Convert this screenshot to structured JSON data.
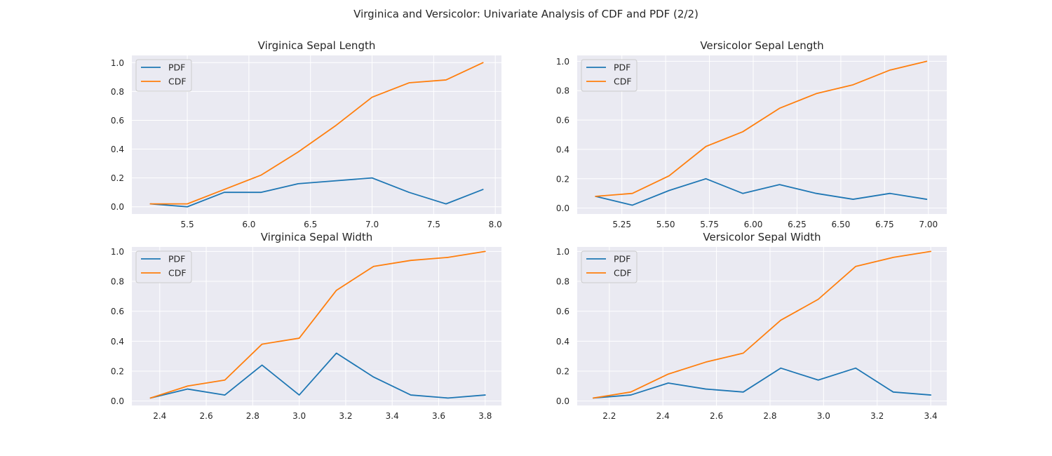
{
  "figure": {
    "title": "Virginica and Versicolor: Univariate Analysis of CDF and PDF (2/2)"
  },
  "colors": {
    "pdf": "#1f77b4",
    "cdf": "#ff7f0e",
    "plot_background": "#eaeaf2",
    "grid": "#ffffff"
  },
  "chart_data": [
    {
      "type": "line",
      "title": "Virginica Sepal Length",
      "xlabel": "",
      "ylabel": "",
      "xlim": [
        5.05,
        8.05
      ],
      "ylim": [
        -0.05,
        1.05
      ],
      "xticks": [
        5.5,
        6.0,
        6.5,
        7.0,
        7.5,
        8.0
      ],
      "xtick_labels": [
        "5.5",
        "6.0",
        "6.5",
        "7.0",
        "7.5",
        "8.0"
      ],
      "yticks": [
        0.0,
        0.2,
        0.4,
        0.6,
        0.8,
        1.0
      ],
      "ytick_labels": [
        "0.0",
        "0.2",
        "0.4",
        "0.6",
        "0.8",
        "1.0"
      ],
      "grid": true,
      "legend": "upper-left",
      "x": [
        5.2,
        5.5,
        5.8,
        6.1,
        6.4,
        6.7,
        7.0,
        7.3,
        7.6,
        7.9
      ],
      "series": [
        {
          "name": "PDF",
          "color_key": "pdf",
          "values": [
            0.02,
            0.0,
            0.1,
            0.1,
            0.16,
            0.18,
            0.2,
            0.1,
            0.02,
            0.12
          ]
        },
        {
          "name": "CDF",
          "color_key": "cdf",
          "values": [
            0.02,
            0.02,
            0.12,
            0.22,
            0.38,
            0.56,
            0.76,
            0.86,
            0.88,
            1.0
          ]
        }
      ]
    },
    {
      "type": "line",
      "title": "Versicolor Sepal Length",
      "xlabel": "",
      "ylabel": "",
      "xlim": [
        4.995,
        7.105
      ],
      "ylim": [
        -0.04,
        1.04
      ],
      "xticks": [
        5.25,
        5.5,
        5.75,
        6.0,
        6.25,
        6.5,
        6.75,
        7.0
      ],
      "xtick_labels": [
        "5.25",
        "5.50",
        "5.75",
        "6.00",
        "6.25",
        "6.50",
        "6.75",
        "7.00"
      ],
      "yticks": [
        0.0,
        0.2,
        0.4,
        0.6,
        0.8,
        1.0
      ],
      "ytick_labels": [
        "0.0",
        "0.2",
        "0.4",
        "0.6",
        "0.8",
        "1.0"
      ],
      "grid": true,
      "legend": "upper-left",
      "x": [
        5.1,
        5.31,
        5.52,
        5.73,
        5.94,
        6.15,
        6.36,
        6.57,
        6.78,
        6.99
      ],
      "series": [
        {
          "name": "PDF",
          "color_key": "pdf",
          "values": [
            0.08,
            0.02,
            0.12,
            0.2,
            0.1,
            0.16,
            0.1,
            0.06,
            0.1,
            0.06
          ]
        },
        {
          "name": "CDF",
          "color_key": "cdf",
          "values": [
            0.08,
            0.1,
            0.22,
            0.42,
            0.52,
            0.68,
            0.78,
            0.84,
            0.94,
            1.0
          ]
        }
      ]
    },
    {
      "type": "line",
      "title": "Virginica Sepal Width",
      "xlabel": "",
      "ylabel": "",
      "xlim": [
        2.28,
        3.87
      ],
      "ylim": [
        -0.03,
        1.03
      ],
      "xticks": [
        2.4,
        2.6,
        2.8,
        3.0,
        3.2,
        3.4,
        3.6,
        3.8
      ],
      "xtick_labels": [
        "2.4",
        "2.6",
        "2.8",
        "3.0",
        "3.2",
        "3.4",
        "3.6",
        "3.8"
      ],
      "yticks": [
        0.0,
        0.2,
        0.4,
        0.6,
        0.8,
        1.0
      ],
      "ytick_labels": [
        "0.0",
        "0.2",
        "0.4",
        "0.6",
        "0.8",
        "1.0"
      ],
      "grid": true,
      "legend": "upper-left",
      "x": [
        2.36,
        2.52,
        2.68,
        2.84,
        3.0,
        3.16,
        3.32,
        3.48,
        3.64,
        3.8
      ],
      "series": [
        {
          "name": "PDF",
          "color_key": "pdf",
          "values": [
            0.02,
            0.08,
            0.04,
            0.24,
            0.04,
            0.32,
            0.16,
            0.04,
            0.02,
            0.04
          ]
        },
        {
          "name": "CDF",
          "color_key": "cdf",
          "values": [
            0.02,
            0.1,
            0.14,
            0.38,
            0.42,
            0.74,
            0.9,
            0.94,
            0.96,
            1.0
          ]
        }
      ]
    },
    {
      "type": "line",
      "title": "Versicolor Sepal Width",
      "xlabel": "",
      "ylabel": "",
      "xlim": [
        2.08,
        3.46
      ],
      "ylim": [
        -0.03,
        1.03
      ],
      "xticks": [
        2.2,
        2.4,
        2.6,
        2.8,
        3.0,
        3.2,
        3.4
      ],
      "xtick_labels": [
        "2.2",
        "2.4",
        "2.6",
        "2.8",
        "3.0",
        "3.2",
        "3.4"
      ],
      "yticks": [
        0.0,
        0.2,
        0.4,
        0.6,
        0.8,
        1.0
      ],
      "ytick_labels": [
        "0.0",
        "0.2",
        "0.4",
        "0.6",
        "0.8",
        "1.0"
      ],
      "grid": true,
      "legend": "upper-left",
      "x": [
        2.14,
        2.28,
        2.42,
        2.56,
        2.7,
        2.84,
        2.98,
        3.12,
        3.26,
        3.4
      ],
      "series": [
        {
          "name": "PDF",
          "color_key": "pdf",
          "values": [
            0.02,
            0.04,
            0.12,
            0.08,
            0.06,
            0.22,
            0.14,
            0.22,
            0.06,
            0.04
          ]
        },
        {
          "name": "CDF",
          "color_key": "cdf",
          "values": [
            0.02,
            0.06,
            0.18,
            0.26,
            0.32,
            0.54,
            0.68,
            0.9,
            0.96,
            1.0
          ]
        }
      ]
    }
  ]
}
